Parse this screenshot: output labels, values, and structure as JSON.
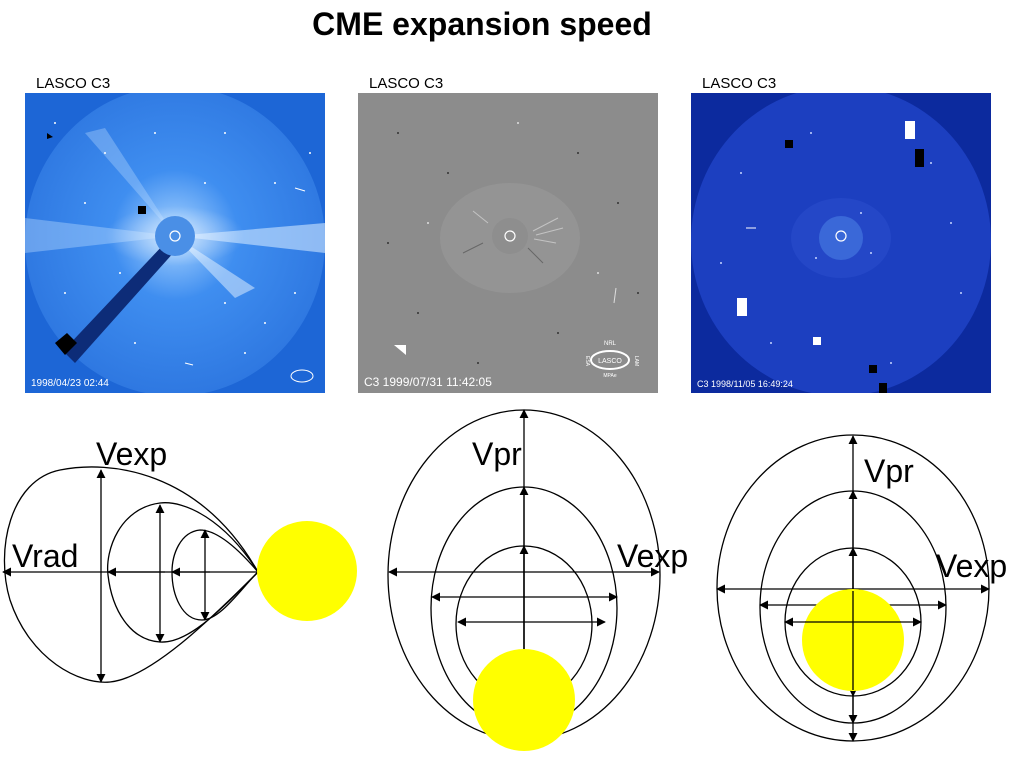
{
  "title": "CME expansion speed",
  "panels": [
    {
      "label": "LASCO C3",
      "timestamp": "1998/04/23 02:44"
    },
    {
      "label": "LASCO C3",
      "timestamp": "C3 1999/07/31 11:42:05",
      "logo_text": [
        "NRL",
        "LASCO",
        "MPAe",
        "ESA",
        "LAM"
      ]
    },
    {
      "label": "LASCO C3",
      "timestamp": "C3   1998/11/05 16:49:24"
    }
  ],
  "diagrams": {
    "left": {
      "vexp": "Vexp",
      "vrad": "Vrad"
    },
    "middle": {
      "vpr": "Vpr",
      "vexp": "Vexp"
    },
    "right": {
      "vpr": "Vpr",
      "vexp": "Vexp"
    }
  },
  "colors": {
    "sun": "#ffff00",
    "panel1_bg": "#2f7fe8",
    "panel2_bg": "#8a8a8a",
    "panel3_bg": "#1a3fc4"
  }
}
